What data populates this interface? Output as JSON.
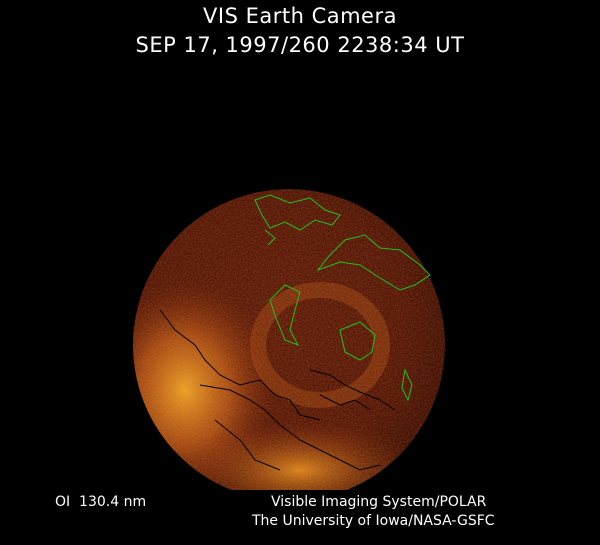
{
  "header": {
    "title": "VIS Earth Camera",
    "timestamp": "SEP 17, 1997/260 2238:34 UT"
  },
  "footer": {
    "wavelength": "OI  130.4 nm",
    "instrument": "Visible Imaging System/POLAR",
    "institution": "The University of Iowa/NASA-GSFC"
  },
  "image": {
    "subject": "auroral-oval-earth-disk",
    "colors": {
      "background": "#000000",
      "disk_dark": "#4a1206",
      "disk_mid": "#8a2c0a",
      "aurora_bright": "#f0a020",
      "coastline_day": "#1fbf1f",
      "coastline_night": "#000000"
    }
  }
}
